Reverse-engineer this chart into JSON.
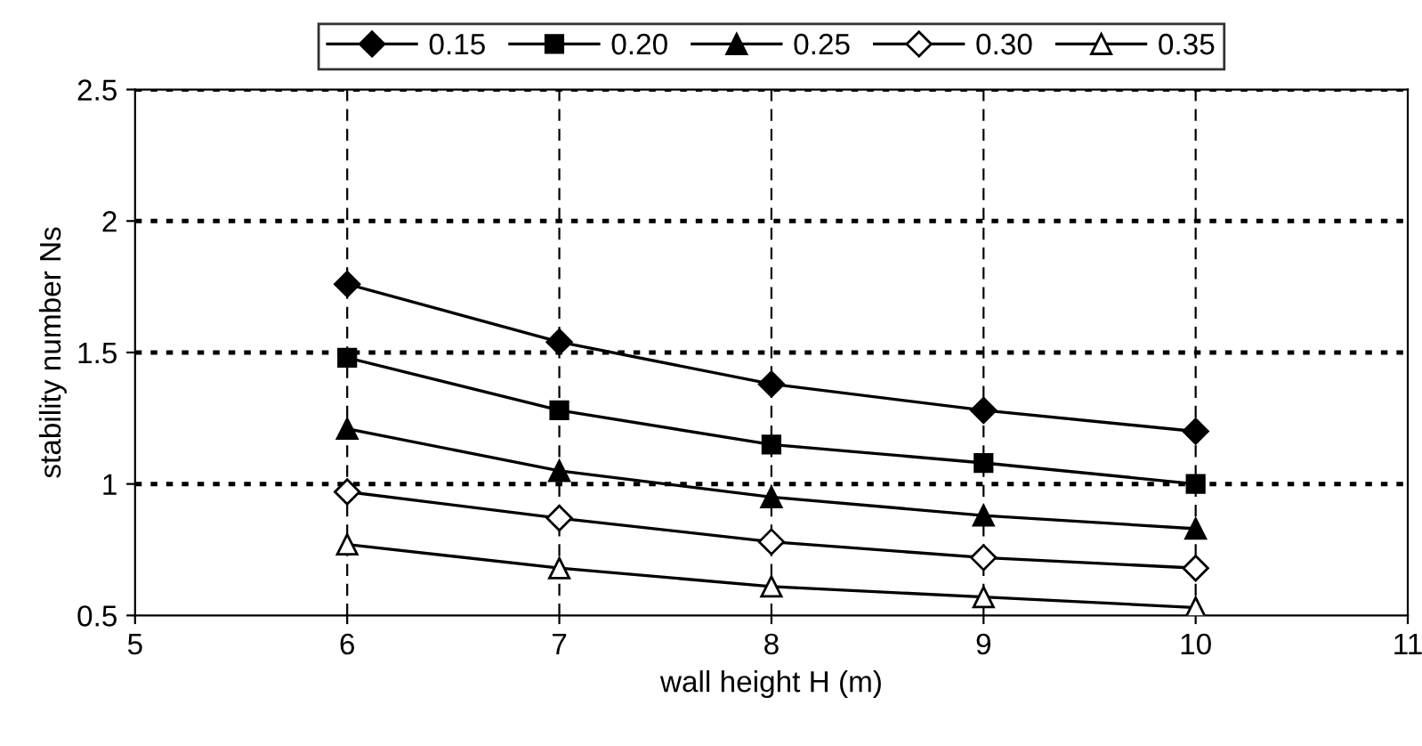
{
  "chart_data": {
    "type": "line",
    "xlabel": "wall height H (m)",
    "ylabel": "stability number Ns",
    "x": [
      6,
      7,
      8,
      9,
      10
    ],
    "xlim": [
      5,
      11
    ],
    "xticks": [
      5,
      6,
      7,
      8,
      9,
      10,
      11
    ],
    "ylim": [
      0.5,
      2.5
    ],
    "yticks": [
      0.5,
      1,
      1.5,
      2,
      2.5
    ],
    "grid": true,
    "legend": "top",
    "series": [
      {
        "name": "0.15",
        "color": "#000000",
        "marker": "diamond",
        "values": [
          1.76,
          1.54,
          1.38,
          1.28,
          1.2
        ]
      },
      {
        "name": "0.20",
        "color": "#000000",
        "marker": "square",
        "values": [
          1.48,
          1.28,
          1.15,
          1.08,
          1.0
        ]
      },
      {
        "name": "0.25",
        "color": "#000000",
        "marker": "triangle",
        "values": [
          1.21,
          1.05,
          0.95,
          0.88,
          0.83
        ]
      },
      {
        "name": "0.30",
        "color": "#000000",
        "marker": "diamond-open",
        "values": [
          0.97,
          0.87,
          0.78,
          0.72,
          0.68
        ]
      },
      {
        "name": "0.35",
        "color": "#000000",
        "marker": "triangle-open",
        "values": [
          0.77,
          0.68,
          0.61,
          0.57,
          0.53
        ]
      }
    ]
  }
}
